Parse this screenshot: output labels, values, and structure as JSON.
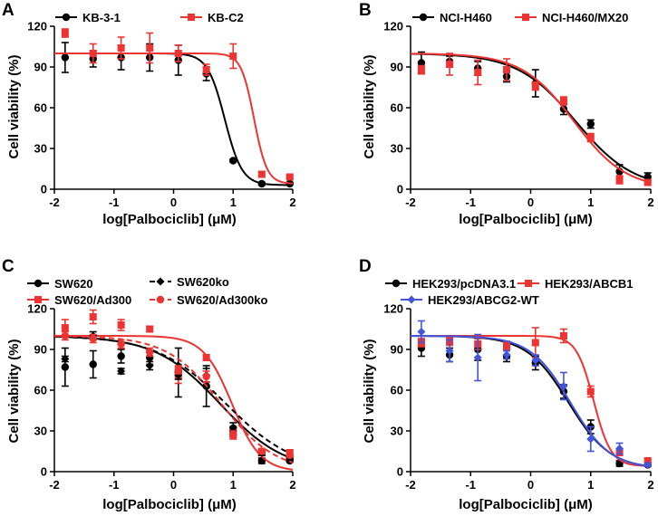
{
  "figure": {
    "panels": [
      "A",
      "B",
      "C",
      "D"
    ]
  },
  "chart_data": [
    {
      "panel": "A",
      "type": "line",
      "title": "",
      "xlabel": "log[Palbociclib] (μM)",
      "ylabel": "Cell viability (%)",
      "xlim": [
        -2,
        2
      ],
      "ylim": [
        0,
        120
      ],
      "xticks": [
        -2,
        -1,
        0,
        1,
        2
      ],
      "yticks": [
        0,
        30,
        60,
        90,
        120
      ],
      "legend_position": "top-left",
      "series": [
        {
          "name": "KB-3-1",
          "color": "#000000",
          "marker": "circle",
          "dash": "",
          "x": [
            -1.82,
            -1.35,
            -0.88,
            -0.4,
            0.08,
            0.55,
            1.0,
            1.48,
            1.95
          ],
          "y": [
            97,
            96,
            97,
            97,
            95,
            85,
            21,
            4,
            4
          ],
          "err": [
            11,
            6,
            9,
            10,
            11,
            5,
            1,
            1,
            1
          ],
          "fit": {
            "top": 100,
            "bottom": 3,
            "logIC50": 0.86,
            "hill": 3.0
          }
        },
        {
          "name": "KB-C2",
          "color": "#ee3333",
          "marker": "square",
          "dash": "",
          "x": [
            -1.82,
            -1.35,
            -0.88,
            -0.4,
            0.08,
            0.55,
            1.0,
            1.48,
            1.95
          ],
          "y": [
            115,
            100,
            104,
            104,
            100,
            88,
            98,
            11,
            9
          ],
          "err": [
            3,
            7,
            8,
            11,
            6,
            4,
            9,
            2,
            1
          ],
          "fit": {
            "top": 100,
            "bottom": 4,
            "logIC50": 1.35,
            "hill": 4.0
          }
        }
      ]
    },
    {
      "panel": "B",
      "type": "line",
      "title": "",
      "xlabel": "log[Palbociclib] (μM)",
      "ylabel": "Cell viability (%)",
      "xlim": [
        -2,
        2
      ],
      "ylim": [
        0,
        120
      ],
      "xticks": [
        -2,
        -1,
        0,
        1,
        2
      ],
      "yticks": [
        0,
        30,
        60,
        90,
        120
      ],
      "legend_position": "top-left",
      "series": [
        {
          "name": "NCI-H460",
          "color": "#000000",
          "marker": "circle",
          "dash": "",
          "x": [
            -1.82,
            -1.35,
            -0.88,
            -0.4,
            0.08,
            0.55,
            1.0,
            1.48,
            1.95
          ],
          "y": [
            93,
            94,
            89,
            83,
            78,
            59,
            48,
            13,
            9
          ],
          "err": [
            8,
            4,
            5,
            4,
            10,
            4,
            3,
            5,
            3
          ],
          "fit": {
            "top": 100,
            "bottom": 0,
            "logIC50": 0.75,
            "hill": 0.9
          }
        },
        {
          "name": "NCI-H460/MX20",
          "color": "#ee3333",
          "marker": "square",
          "dash": "",
          "x": [
            -1.82,
            -1.35,
            -0.88,
            -0.4,
            0.08,
            0.55,
            1.0,
            1.48,
            1.95
          ],
          "y": [
            88,
            92,
            86,
            88,
            76,
            65,
            38,
            7,
            5
          ],
          "err": [
            3,
            8,
            9,
            8,
            3,
            3,
            3,
            3,
            2
          ],
          "fit": {
            "top": 100,
            "bottom": 0,
            "logIC50": 0.72,
            "hill": 1.0
          }
        }
      ]
    },
    {
      "panel": "C",
      "type": "line",
      "title": "",
      "xlabel": "log[Palbociclib] (μM)",
      "ylabel": "Cell viability (%)",
      "xlim": [
        -2,
        2
      ],
      "ylim": [
        0,
        120
      ],
      "xticks": [
        -2,
        -1,
        0,
        1,
        2
      ],
      "yticks": [
        0,
        30,
        60,
        90,
        120
      ],
      "legend_position": "top-left",
      "series": [
        {
          "name": "SW620",
          "color": "#000000",
          "marker": "circle",
          "dash": "",
          "x": [
            -1.82,
            -1.35,
            -0.88,
            -0.4,
            0.08,
            0.55,
            1.0,
            1.48,
            1.95
          ],
          "y": [
            77,
            79,
            85,
            84,
            73,
            63,
            32,
            8,
            8
          ],
          "err": [
            14,
            10,
            5,
            5,
            18,
            15,
            4,
            2,
            1
          ],
          "fit": {
            "top": 100,
            "bottom": 0,
            "logIC50": 0.78,
            "hill": 0.8
          }
        },
        {
          "name": "SW620/Ad300",
          "color": "#ee3333",
          "marker": "square",
          "dash": "",
          "x": [
            -1.82,
            -1.35,
            -0.88,
            -0.4,
            0.08,
            0.55,
            1.0,
            1.48,
            1.95
          ],
          "y": [
            106,
            114,
            108,
            105,
            71,
            84,
            28,
            14,
            14
          ],
          "err": [
            6,
            5,
            4,
            2,
            6,
            2,
            3,
            2,
            2
          ],
          "fit": {
            "top": 100,
            "bottom": 0,
            "logIC50": 0.98,
            "hill": 1.8
          }
        },
        {
          "name": "SW620ko",
          "color": "#000000",
          "marker": "diamond",
          "dash": "6 4",
          "x": [
            -1.82,
            -1.35,
            -0.88,
            -0.4,
            0.08,
            0.55,
            1.0,
            1.48,
            1.95
          ],
          "y": [
            83,
            100,
            74,
            78,
            71,
            71,
            30,
            14,
            10
          ],
          "err": [
            2,
            3,
            2,
            3,
            3,
            5,
            3,
            2,
            1
          ],
          "fit": {
            "top": 100,
            "bottom": 0,
            "logIC50": 0.88,
            "hill": 0.75
          }
        },
        {
          "name": "SW620/Ad300ko",
          "color": "#ee3333",
          "marker": "circle",
          "dash": "6 4",
          "x": [
            -1.82,
            -1.35,
            -0.88,
            -0.4,
            0.08,
            0.55,
            1.0,
            1.48,
            1.95
          ],
          "y": [
            100,
            98,
            94,
            88,
            75,
            70,
            27,
            15,
            12
          ],
          "err": [
            3,
            3,
            3,
            3,
            3,
            4,
            3,
            2,
            1
          ],
          "fit": {
            "top": 100,
            "bottom": 0,
            "logIC50": 0.8,
            "hill": 0.95
          }
        }
      ]
    },
    {
      "panel": "D",
      "type": "line",
      "title": "",
      "xlabel": "log[Palbociclib] (μM)",
      "ylabel": "Cell viability (%)",
      "xlim": [
        -2,
        2
      ],
      "ylim": [
        0,
        120
      ],
      "xticks": [
        -2,
        -1,
        0,
        1,
        2
      ],
      "yticks": [
        0,
        30,
        60,
        90,
        120
      ],
      "legend_position": "top-left",
      "series": [
        {
          "name": "HEK293/pcDNA3.1",
          "color": "#000000",
          "marker": "circle",
          "dash": "",
          "x": [
            -1.82,
            -1.35,
            -0.88,
            -0.4,
            0.08,
            0.55,
            1.0,
            1.48,
            1.95
          ],
          "y": [
            91,
            86,
            90,
            85,
            80,
            59,
            33,
            6,
            5
          ],
          "err": [
            6,
            5,
            8,
            4,
            5,
            5,
            5,
            2,
            1
          ],
          "fit": {
            "top": 100,
            "bottom": 2,
            "logIC50": 0.63,
            "hill": 1.25
          }
        },
        {
          "name": "HEK293/ABCB1",
          "color": "#ee3333",
          "marker": "square",
          "dash": "",
          "x": [
            -1.82,
            -1.35,
            -0.88,
            -0.4,
            0.08,
            0.55,
            1.0,
            1.48,
            1.95
          ],
          "y": [
            95,
            96,
            94,
            93,
            95,
            100,
            59,
            14,
            8
          ],
          "err": [
            3,
            3,
            4,
            3,
            11,
            5,
            4,
            2,
            1
          ],
          "fit": {
            "top": 100,
            "bottom": 4,
            "logIC50": 1.05,
            "hill": 3.0
          }
        },
        {
          "name": "HEK293/ABCG2-WT",
          "color": "#4455dd",
          "marker": "diamond",
          "dash": "",
          "x": [
            -1.82,
            -1.35,
            -0.88,
            -0.4,
            0.08,
            0.55,
            1.0,
            1.48,
            1.95
          ],
          "y": [
            103,
            89,
            84,
            86,
            82,
            63,
            24,
            17,
            5
          ],
          "err": [
            8,
            8,
            17,
            3,
            4,
            10,
            9,
            4,
            1
          ],
          "fit": {
            "top": 100,
            "bottom": 2,
            "logIC50": 0.66,
            "hill": 1.3
          }
        }
      ]
    }
  ]
}
